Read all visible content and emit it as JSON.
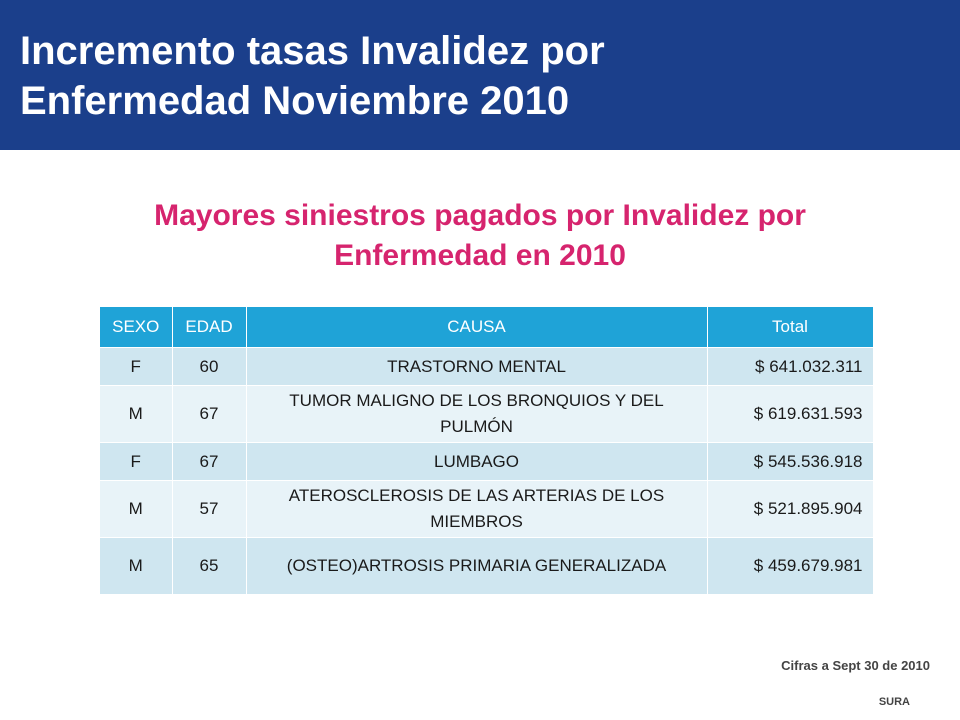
{
  "header": {
    "title": "Incremento tasas Invalidez por\nEnfermedad Noviembre 2010"
  },
  "subtitle": "Mayores siniestros pagados por Invalidez por\nEnfermedad en 2010",
  "table": {
    "columns": [
      "SEXO",
      "EDAD",
      "CAUSA",
      "Total"
    ],
    "rows": [
      {
        "sexo": "F",
        "edad": "60",
        "causa": "TRASTORNO MENTAL",
        "total": "$ 641.032.311"
      },
      {
        "sexo": "M",
        "edad": "67",
        "causa": "TUMOR MALIGNO DE LOS BRONQUIOS Y DEL PULMÓN",
        "total": "$ 619.631.593"
      },
      {
        "sexo": "F",
        "edad": "67",
        "causa": "LUMBAGO",
        "total": "$ 545.536.918"
      },
      {
        "sexo": "M",
        "edad": "57",
        "causa": "ATEROSCLEROSIS DE LAS ARTERIAS DE LOS MIEMBROS",
        "total": "$ 521.895.904"
      },
      {
        "sexo": "M",
        "edad": "65",
        "causa": "(OSTEO)ARTROSIS PRIMARIA GENERALIZADA",
        "total": "$ 459.679.981"
      }
    ]
  },
  "footnote": "Cifras a Sept 30 de 2010",
  "brand": "SURA",
  "colors": {
    "header_bg": "#1b3f8b",
    "subtitle": "#d6246e",
    "table_header_bg": "#1fa3d7",
    "row_odd_bg": "#cfe6f0",
    "row_even_bg": "#e8f3f8"
  }
}
